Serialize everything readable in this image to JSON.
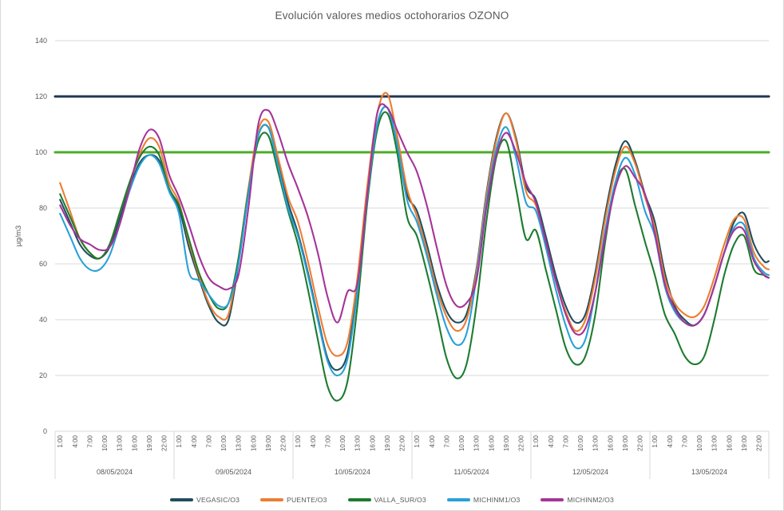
{
  "figure": {
    "background": "#FFFFFF",
    "border_color": "#D9D9D9"
  },
  "chart_data": {
    "type": "line",
    "title": "Evolución valores medios octohorarios OZONO",
    "ylabel": "µg/m3",
    "ylim": [
      0,
      140
    ],
    "yticks": [
      0,
      20,
      40,
      60,
      80,
      100,
      120,
      140
    ],
    "grid": true,
    "legend_position": "bottom",
    "x_axis": {
      "days": [
        "08/05/2024",
        "09/05/2024",
        "10/05/2024",
        "11/05/2024",
        "12/05/2024",
        "13/05/2024"
      ],
      "hour_tick_labels": [
        "1:00",
        "4:00",
        "7:00",
        "10:00",
        "13:00",
        "16:00",
        "19:00",
        "22:00"
      ],
      "hours_per_day": 24
    },
    "sample_x_hours": [
      1,
      3,
      5,
      7,
      9,
      11,
      13,
      15,
      17,
      19,
      21,
      23,
      25,
      27,
      29,
      31,
      33,
      35,
      37,
      39,
      41,
      43,
      45,
      47,
      49,
      51,
      53,
      55,
      57,
      59,
      61,
      63,
      65,
      67,
      69,
      71,
      73,
      75,
      77,
      79,
      81,
      83,
      85,
      87,
      89,
      91,
      93,
      95,
      97,
      99,
      101,
      103,
      105,
      107,
      109,
      111,
      113,
      115,
      117,
      119,
      121,
      123,
      125,
      127,
      129,
      131,
      133,
      135,
      137,
      139,
      141,
      143,
      144
    ],
    "reference_lines": [
      {
        "name": "limit-120",
        "value": 120,
        "color": "#1F3852"
      },
      {
        "name": "limit-100",
        "value": 100,
        "color": "#4CAC2A"
      }
    ],
    "series": [
      {
        "name": "VEGASIC/O3",
        "color": "#1F4E5F",
        "values": [
          83,
          75,
          67,
          63,
          62,
          66,
          76,
          87,
          96,
          99,
          97,
          87,
          80,
          66,
          55,
          45,
          39,
          40,
          60,
          85,
          106,
          109,
          96,
          82,
          71,
          57,
          41,
          26,
          22,
          28,
          52,
          85,
          110,
          116,
          103,
          85,
          79,
          67,
          53,
          43,
          39,
          42,
          58,
          85,
          105,
          114,
          105,
          88,
          83,
          70,
          56,
          45,
          39,
          42,
          57,
          78,
          95,
          104,
          97,
          85,
          75,
          57,
          45,
          40,
          38,
          42,
          52,
          64,
          75,
          78,
          67,
          61,
          61
        ]
      },
      {
        "name": "PUENTE/O3",
        "color": "#ED7D31",
        "values": [
          89,
          79,
          69,
          64,
          62,
          67,
          78,
          89,
          99,
          105,
          102,
          89,
          82,
          68,
          56,
          46,
          41,
          42,
          62,
          87,
          108,
          111,
          98,
          84,
          75,
          61,
          45,
          31,
          27,
          32,
          55,
          88,
          114,
          121,
          106,
          87,
          77,
          65,
          51,
          41,
          36,
          40,
          57,
          84,
          104,
          114,
          104,
          86,
          81,
          68,
          54,
          43,
          36,
          40,
          55,
          76,
          93,
          102,
          96,
          84,
          73,
          55,
          46,
          42,
          41,
          45,
          55,
          67,
          76,
          76,
          64,
          59,
          58
        ]
      },
      {
        "name": "VALLA_SUR/O3",
        "color": "#1E7B30",
        "values": [
          85,
          77,
          69,
          64,
          62,
          67,
          78,
          89,
          98,
          102,
          99,
          87,
          81,
          69,
          57,
          49,
          44,
          46,
          62,
          86,
          104,
          106,
          93,
          79,
          67,
          51,
          33,
          16,
          11,
          18,
          45,
          82,
          108,
          114,
          100,
          77,
          70,
          57,
          42,
          26,
          19,
          24,
          45,
          75,
          98,
          104,
          87,
          69,
          72,
          58,
          44,
          30,
          24,
          27,
          42,
          68,
          88,
          94,
          81,
          68,
          56,
          42,
          35,
          27,
          24,
          27,
          40,
          56,
          67,
          70,
          58,
          56,
          55
        ]
      },
      {
        "name": "MICHINM1/O3",
        "color": "#29A0D8",
        "values": [
          78,
          70,
          62,
          58,
          58,
          63,
          74,
          86,
          95,
          99,
          96,
          86,
          78,
          57,
          54,
          49,
          45,
          46,
          60,
          85,
          106,
          109,
          95,
          80,
          70,
          56,
          40,
          25,
          20,
          26,
          50,
          84,
          110,
          116,
          103,
          83,
          75,
          63,
          49,
          37,
          31,
          35,
          55,
          82,
          101,
          109,
          98,
          82,
          79,
          66,
          51,
          38,
          30,
          33,
          50,
          72,
          89,
          98,
          92,
          79,
          70,
          52,
          43,
          39,
          38,
          42,
          52,
          64,
          73,
          74,
          62,
          57,
          56
        ]
      },
      {
        "name": "MICHINM2/O3",
        "color": "#A53498",
        "values": [
          81,
          74,
          69,
          67,
          65,
          66,
          74,
          87,
          101,
          108,
          105,
          92,
          84,
          74,
          63,
          55,
          52,
          51,
          56,
          80,
          110,
          115,
          107,
          96,
          87,
          77,
          64,
          48,
          39,
          50,
          53,
          85,
          114,
          116,
          108,
          100,
          93,
          81,
          66,
          52,
          45,
          46,
          54,
          80,
          99,
          107,
          100,
          89,
          82,
          68,
          54,
          42,
          35,
          37,
          50,
          70,
          87,
          95,
          91,
          85,
          71,
          53,
          44,
          39,
          38,
          42,
          52,
          64,
          72,
          72,
          61,
          56,
          55
        ]
      }
    ],
    "styles": {
      "grid_color": "#D9D9D9",
      "tick_label_color": "#595959",
      "title_color": "#595959",
      "axis_label_color": "#595959",
      "legend_text_color": "#595959",
      "separator_color": "#D9D9D9"
    }
  }
}
